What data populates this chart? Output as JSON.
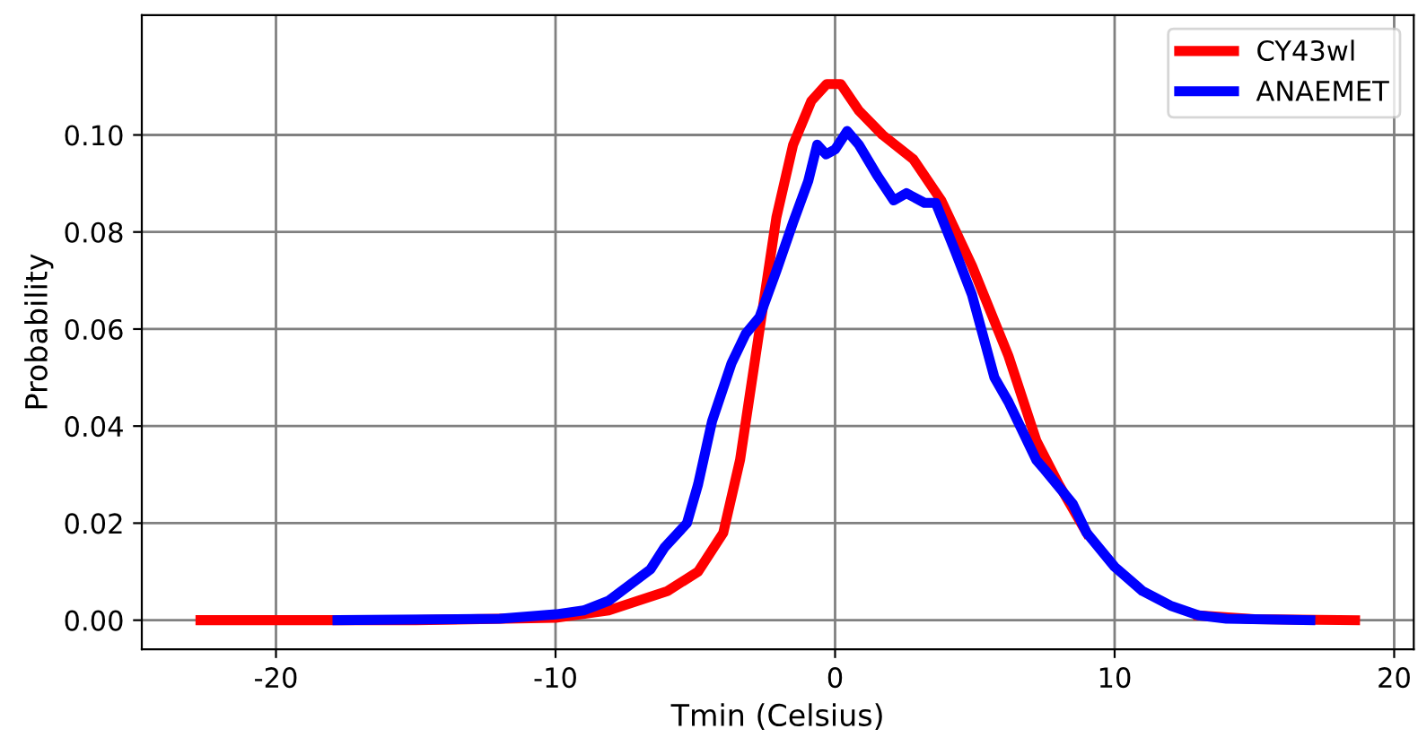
{
  "chart_data": {
    "type": "line",
    "xlabel": "Tmin (Celsius)",
    "ylabel": "Probability",
    "xlim": [
      -24.8,
      20.7
    ],
    "ylim": [
      -0.006,
      0.1247
    ],
    "xticks": [
      -20,
      -10,
      0,
      10,
      20
    ],
    "yticks": [
      {
        "value": 0,
        "label": "0.00"
      },
      {
        "value": 0.02,
        "label": "0.02"
      },
      {
        "value": 0.04,
        "label": "0.04"
      },
      {
        "value": 0.06,
        "label": "0.06"
      },
      {
        "value": 0.08,
        "label": "0.08"
      },
      {
        "value": 0.1,
        "label": "0.10"
      }
    ],
    "grid": true,
    "legend": "top right",
    "marker": "none",
    "line_style": "solid",
    "series": [
      {
        "name": "CY43wl",
        "color": "#ff0000",
        "x": [
          -22.7,
          -15,
          -10,
          -8.1,
          -6,
          -4.9,
          -4.0,
          -3.4,
          -2.75,
          -2.1,
          -1.5,
          -0.85,
          -0.3,
          0.2,
          0.85,
          1.7,
          2.8,
          3.8,
          4.9,
          6.2,
          7.2,
          8,
          9,
          10,
          11,
          12,
          13,
          15,
          18.6
        ],
        "values": [
          0,
          0,
          0.0005,
          0.002,
          0.006,
          0.01,
          0.018,
          0.033,
          0.058,
          0.083,
          0.098,
          0.107,
          0.1105,
          0.1105,
          0.105,
          0.1,
          0.095,
          0.0865,
          0.073,
          0.0545,
          0.037,
          0.028,
          0.018,
          null,
          null,
          null,
          0.001,
          0.0002,
          0
        ]
      },
      {
        "name": "ANAEMET",
        "color": "#0000ff",
        "x": [
          -17.8,
          -12,
          -10,
          -9,
          -8.1,
          -6.6,
          -6.1,
          -5.3,
          -4.9,
          -4.4,
          -3.7,
          -3.2,
          -2.7,
          -2.1,
          -1.5,
          -0.96,
          -0.64,
          -0.32,
          0,
          0.43,
          0.85,
          1.5,
          2.1,
          2.55,
          3.2,
          3.6,
          4.3,
          4.9,
          5.7,
          6.2,
          7.2,
          7.5,
          8.5,
          9,
          10,
          11,
          12,
          13,
          14,
          17
        ],
        "values": [
          0,
          0.0003,
          0.0012,
          0.002,
          0.004,
          0.0105,
          0.015,
          0.02,
          0.028,
          0.041,
          0.053,
          0.059,
          0.0625,
          0.072,
          0.082,
          0.0905,
          0.098,
          0.096,
          0.097,
          0.1008,
          0.098,
          0.0917,
          0.0865,
          0.088,
          0.086,
          0.086,
          0.076,
          0.067,
          0.05,
          0.045,
          0.033,
          0.031,
          0.024,
          0.018,
          0.011,
          0.006,
          0.003,
          0.001,
          0.0003,
          0
        ]
      }
    ]
  }
}
